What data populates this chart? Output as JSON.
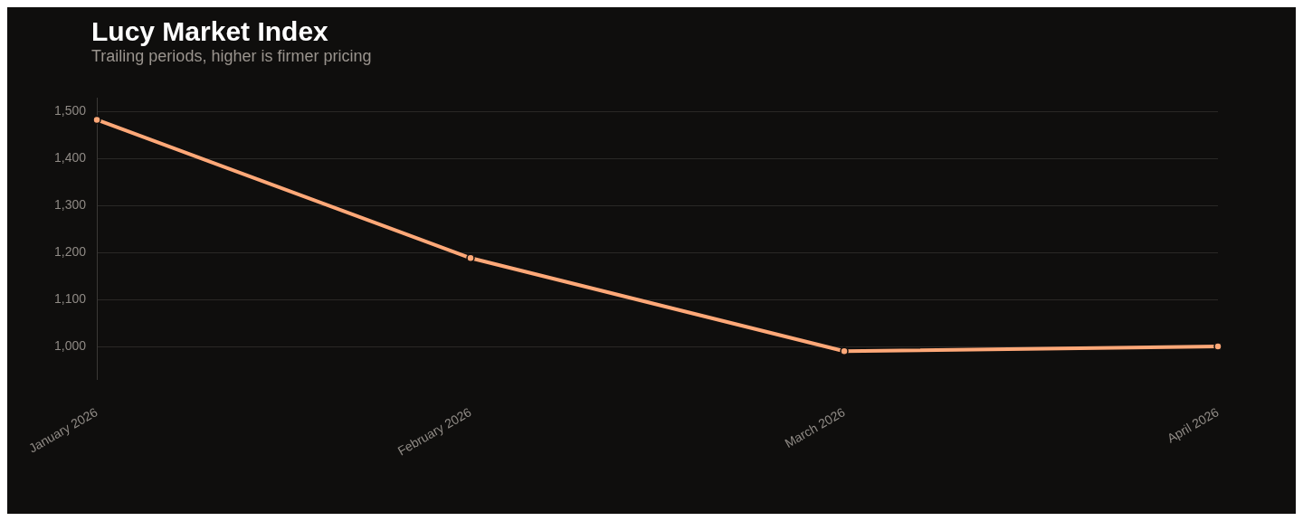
{
  "chart_data": {
    "type": "line",
    "title": "Lucy Market Index",
    "subtitle": "Trailing periods, higher is firmer pricing",
    "categories": [
      "January 2026",
      "February 2026",
      "March 2026",
      "April 2026"
    ],
    "series": [
      {
        "color": "#ffa878",
        "values": [
          1483,
          1189,
          991,
          1001
        ]
      }
    ],
    "ylim": [
      930,
      1530
    ],
    "yticks": [
      {
        "value": 1000,
        "label": "1,000"
      },
      {
        "value": 1100,
        "label": "1,100"
      },
      {
        "value": 1200,
        "label": "1,200"
      },
      {
        "value": 1300,
        "label": "1,300"
      },
      {
        "value": 1400,
        "label": "1,400"
      },
      {
        "value": 1500,
        "label": "1,500"
      }
    ],
    "grid": "y",
    "legend": false,
    "marker": "circle",
    "line_style": "solid"
  }
}
